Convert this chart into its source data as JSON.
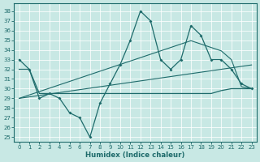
{
  "xlabel": "Humidex (Indice chaleur)",
  "xlim": [
    -0.5,
    23.5
  ],
  "ylim": [
    24.5,
    38.8
  ],
  "yticks": [
    25,
    26,
    27,
    28,
    29,
    30,
    31,
    32,
    33,
    34,
    35,
    36,
    37,
    38
  ],
  "xticks": [
    0,
    1,
    2,
    3,
    4,
    5,
    6,
    7,
    8,
    9,
    10,
    11,
    12,
    13,
    14,
    15,
    16,
    17,
    18,
    19,
    20,
    21,
    22,
    23
  ],
  "bg_color": "#c8e8e4",
  "line_color": "#1e6b6b",
  "line_main": [
    33,
    32,
    29,
    29.5,
    29,
    27.5,
    27,
    25,
    28.5,
    30.5,
    32.5,
    35,
    38,
    37,
    33,
    32,
    33,
    36.5,
    35.5,
    33,
    33,
    32,
    30.5,
    30
  ],
  "line_flat": [
    32,
    32,
    29.5,
    29.5,
    29.5,
    29.5,
    29.5,
    29.5,
    29.5,
    29.5,
    29.5,
    29.5,
    29.5,
    29.5,
    29.5,
    29.5,
    29.5,
    29.5,
    29.5,
    29.5,
    29.8,
    30,
    30,
    30
  ],
  "line_trend1": [
    29,
    29.15,
    29.3,
    29.45,
    29.6,
    29.75,
    29.9,
    30.05,
    30.2,
    30.35,
    30.5,
    30.65,
    30.8,
    30.95,
    31.1,
    31.25,
    31.4,
    31.55,
    31.7,
    31.85,
    32.0,
    32.15,
    32.3,
    32.45
  ],
  "line_trend2": [
    29,
    29.35,
    29.7,
    30.05,
    30.4,
    30.75,
    31.1,
    31.45,
    31.8,
    32.15,
    32.5,
    32.85,
    33.2,
    33.55,
    33.9,
    34.25,
    34.6,
    34.95,
    34.6,
    34.25,
    33.9,
    33.0,
    30.2,
    30.0
  ]
}
